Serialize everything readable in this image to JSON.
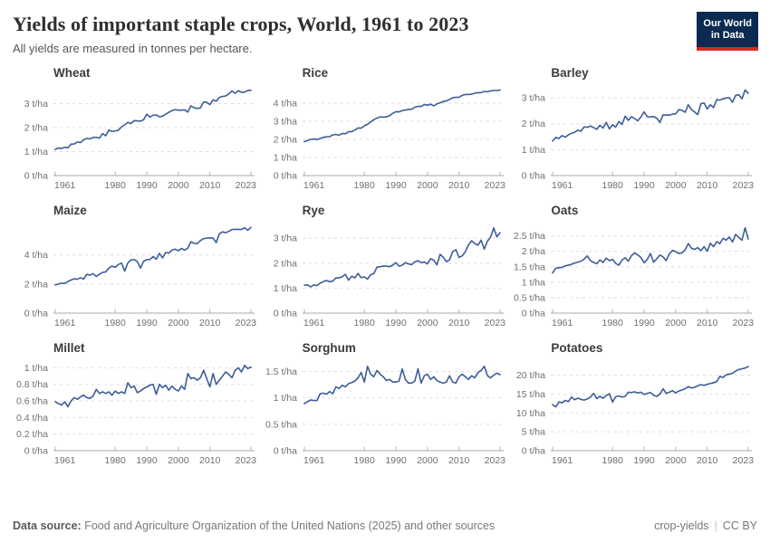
{
  "header": {
    "title": "Yields of important staple crops, World, 1961 to 2023",
    "subtitle": "All yields are measured in tonnes per hectare.",
    "logo": {
      "line1": "Our World",
      "line2": "in Data"
    }
  },
  "footer": {
    "source_label": "Data source:",
    "source_text": " Food and Agriculture Organization of the United Nations (2025) and other sources",
    "note": "crop-yields",
    "separator": "|",
    "license": "CC BY"
  },
  "colors": {
    "line": "#3d5d99",
    "grid": "#dedede",
    "axis": "#a8a8a8",
    "tick": "#b3b3b3",
    "logo_bg": "#0b2a51",
    "logo_red": "#d42b21"
  },
  "chart_data": [
    {
      "type": "line",
      "title": "Wheat",
      "unit": "t/ha",
      "x_start": 1961,
      "x_end": 2023,
      "x_ticks": [
        1961,
        1980,
        1990,
        2000,
        2010,
        2023
      ],
      "y_ticks": [
        0,
        1,
        2,
        3
      ],
      "y_tick_suffix": " t/ha",
      "ylim": [
        0,
        3.7
      ],
      "values": [
        1.09,
        1.15,
        1.13,
        1.18,
        1.16,
        1.31,
        1.32,
        1.4,
        1.38,
        1.49,
        1.55,
        1.53,
        1.59,
        1.6,
        1.56,
        1.75,
        1.66,
        1.9,
        1.84,
        1.86,
        1.89,
        2.03,
        2.12,
        2.22,
        2.17,
        2.29,
        2.28,
        2.27,
        2.33,
        2.56,
        2.44,
        2.52,
        2.53,
        2.45,
        2.48,
        2.56,
        2.64,
        2.71,
        2.75,
        2.73,
        2.73,
        2.74,
        2.65,
        2.91,
        2.83,
        2.8,
        2.82,
        3.07,
        3.06,
        2.96,
        3.16,
        3.1,
        3.26,
        3.3,
        3.32,
        3.41,
        3.53,
        3.43,
        3.54,
        3.47,
        3.48,
        3.55,
        3.56
      ]
    },
    {
      "type": "line",
      "title": "Rice",
      "unit": "t/ha",
      "x_start": 1961,
      "x_end": 2023,
      "x_ticks": [
        1961,
        1980,
        1990,
        2000,
        2010,
        2023
      ],
      "y_ticks": [
        0,
        1,
        2,
        3,
        4
      ],
      "y_tick_suffix": " t/ha",
      "ylim": [
        0,
        4.9
      ],
      "values": [
        1.87,
        1.94,
        2.0,
        2.02,
        1.99,
        2.05,
        2.11,
        2.14,
        2.15,
        2.25,
        2.27,
        2.23,
        2.33,
        2.31,
        2.42,
        2.43,
        2.51,
        2.63,
        2.62,
        2.75,
        2.83,
        2.96,
        3.09,
        3.18,
        3.24,
        3.23,
        3.24,
        3.31,
        3.44,
        3.53,
        3.52,
        3.59,
        3.62,
        3.66,
        3.66,
        3.78,
        3.82,
        3.82,
        3.92,
        3.89,
        3.94,
        3.85,
        3.96,
        4.02,
        4.09,
        4.12,
        4.21,
        4.3,
        4.32,
        4.33,
        4.43,
        4.48,
        4.48,
        4.5,
        4.55,
        4.58,
        4.58,
        4.65,
        4.63,
        4.68,
        4.7,
        4.7,
        4.73
      ]
    },
    {
      "type": "line",
      "title": "Barley",
      "unit": "t/ha",
      "x_start": 1961,
      "x_end": 2023,
      "x_ticks": [
        1961,
        1980,
        1990,
        2000,
        2010,
        2023
      ],
      "y_ticks": [
        0,
        1,
        2,
        3
      ],
      "y_tick_suffix": " t/ha",
      "ylim": [
        0,
        3.42
      ],
      "values": [
        1.33,
        1.47,
        1.43,
        1.54,
        1.48,
        1.57,
        1.63,
        1.67,
        1.75,
        1.71,
        1.88,
        1.86,
        1.91,
        1.85,
        1.78,
        1.94,
        1.83,
        2.05,
        1.8,
        1.96,
        1.87,
        2.08,
        1.97,
        2.29,
        2.13,
        2.27,
        2.2,
        2.11,
        2.26,
        2.46,
        2.27,
        2.26,
        2.28,
        2.21,
        2.05,
        2.34,
        2.33,
        2.33,
        2.37,
        2.38,
        2.54,
        2.52,
        2.44,
        2.73,
        2.55,
        2.45,
        2.35,
        2.77,
        2.8,
        2.57,
        2.73,
        2.62,
        2.93,
        2.91,
        2.96,
        2.99,
        3.0,
        2.83,
        3.09,
        3.12,
        2.96,
        3.3,
        3.17
      ]
    },
    {
      "type": "line",
      "title": "Maize",
      "unit": "t/ha",
      "x_start": 1961,
      "x_end": 2023,
      "x_ticks": [
        1961,
        1980,
        1990,
        2000,
        2010,
        2023
      ],
      "y_ticks": [
        0,
        2,
        4
      ],
      "y_tick_suffix": " t/ha",
      "ylim": [
        0,
        6.1
      ],
      "values": [
        1.94,
        2.0,
        2.06,
        2.04,
        2.17,
        2.28,
        2.36,
        2.33,
        2.43,
        2.35,
        2.67,
        2.61,
        2.72,
        2.52,
        2.68,
        2.8,
        2.84,
        3.1,
        3.24,
        3.15,
        3.35,
        3.44,
        2.89,
        3.45,
        3.66,
        3.68,
        3.55,
        3.1,
        3.57,
        3.68,
        3.69,
        3.89,
        3.71,
        4.11,
        3.8,
        4.17,
        4.13,
        4.34,
        4.4,
        4.29,
        4.45,
        4.33,
        4.47,
        4.91,
        4.8,
        4.78,
        4.99,
        5.12,
        5.16,
        5.18,
        5.16,
        4.85,
        5.46,
        5.59,
        5.53,
        5.63,
        5.75,
        5.76,
        5.76,
        5.75,
        5.87,
        5.7,
        5.9
      ]
    },
    {
      "type": "line",
      "title": "Rye",
      "unit": "t/ha",
      "x_start": 1961,
      "x_end": 2023,
      "x_ticks": [
        1961,
        1980,
        1990,
        2000,
        2010,
        2023
      ],
      "y_ticks": [
        0,
        1,
        2,
        3
      ],
      "y_tick_suffix": " t/ha",
      "ylim": [
        0,
        3.55
      ],
      "values": [
        1.12,
        1.13,
        1.05,
        1.13,
        1.1,
        1.2,
        1.26,
        1.31,
        1.26,
        1.28,
        1.41,
        1.41,
        1.46,
        1.55,
        1.32,
        1.48,
        1.41,
        1.59,
        1.42,
        1.45,
        1.36,
        1.54,
        1.58,
        1.84,
        1.86,
        1.88,
        1.88,
        1.86,
        1.92,
        2.02,
        1.88,
        1.92,
        2.02,
        1.97,
        1.94,
        2.05,
        2.1,
        2.02,
        2.05,
        1.97,
        2.18,
        2.12,
        1.93,
        2.35,
        2.24,
        2.06,
        2.13,
        2.46,
        2.54,
        2.23,
        2.29,
        2.46,
        2.73,
        2.9,
        2.78,
        2.72,
        2.92,
        2.56,
        2.88,
        3.04,
        3.41,
        3.05,
        3.22
      ]
    },
    {
      "type": "line",
      "title": "Oats",
      "unit": "t/ha",
      "x_start": 1961,
      "x_end": 2023,
      "x_ticks": [
        1961,
        1980,
        1990,
        2000,
        2010,
        2023
      ],
      "y_ticks": [
        0,
        0.5,
        1,
        1.5,
        2,
        2.5
      ],
      "y_tick_suffix": " t/ha",
      "ylim": [
        0,
        2.87
      ],
      "values": [
        1.3,
        1.45,
        1.47,
        1.48,
        1.53,
        1.55,
        1.58,
        1.62,
        1.65,
        1.68,
        1.75,
        1.85,
        1.7,
        1.64,
        1.6,
        1.72,
        1.64,
        1.78,
        1.7,
        1.74,
        1.61,
        1.55,
        1.72,
        1.79,
        1.68,
        1.86,
        1.95,
        1.88,
        1.8,
        1.63,
        1.74,
        1.93,
        1.65,
        1.76,
        1.88,
        1.82,
        1.7,
        1.92,
        2.03,
        1.99,
        1.93,
        1.95,
        2.05,
        2.25,
        2.1,
        2.06,
        2.12,
        2.02,
        2.15,
        2.0,
        2.26,
        2.15,
        2.31,
        2.25,
        2.42,
        2.36,
        2.46,
        2.3,
        2.55,
        2.45,
        2.36,
        2.76,
        2.4
      ]
    },
    {
      "type": "line",
      "title": "Millet",
      "unit": "t/ha",
      "x_start": 1961,
      "x_end": 2023,
      "x_ticks": [
        1961,
        1980,
        1990,
        2000,
        2010,
        2023
      ],
      "y_ticks": [
        0,
        0.2,
        0.4,
        0.6,
        0.8,
        1
      ],
      "y_tick_suffix": " t/ha",
      "ylim": [
        0,
        1.07
      ],
      "values": [
        0.59,
        0.57,
        0.55,
        0.59,
        0.53,
        0.6,
        0.64,
        0.62,
        0.65,
        0.67,
        0.64,
        0.63,
        0.66,
        0.74,
        0.69,
        0.71,
        0.69,
        0.71,
        0.67,
        0.72,
        0.69,
        0.71,
        0.69,
        0.82,
        0.76,
        0.78,
        0.7,
        0.72,
        0.75,
        0.77,
        0.79,
        0.8,
        0.68,
        0.8,
        0.76,
        0.79,
        0.73,
        0.78,
        0.74,
        0.72,
        0.78,
        0.74,
        0.93,
        0.87,
        0.88,
        0.85,
        0.88,
        0.97,
        0.87,
        0.77,
        0.93,
        0.8,
        0.85,
        0.9,
        0.95,
        0.92,
        0.88,
        0.97,
        1.0,
        0.95,
        1.03,
        0.99,
        1.01
      ]
    },
    {
      "type": "line",
      "title": "Sorghum",
      "unit": "t/ha",
      "x_start": 1961,
      "x_end": 2023,
      "x_ticks": [
        1961,
        1980,
        1990,
        2000,
        2010,
        2023
      ],
      "y_ticks": [
        0,
        0.5,
        1,
        1.5
      ],
      "y_tick_suffix": " t/ha",
      "ylim": [
        0,
        1.68
      ],
      "values": [
        0.89,
        0.93,
        0.96,
        0.95,
        0.95,
        1.08,
        1.09,
        1.07,
        1.12,
        1.08,
        1.21,
        1.18,
        1.24,
        1.21,
        1.27,
        1.29,
        1.32,
        1.38,
        1.48,
        1.3,
        1.6,
        1.45,
        1.4,
        1.52,
        1.45,
        1.4,
        1.33,
        1.35,
        1.3,
        1.3,
        1.32,
        1.55,
        1.35,
        1.28,
        1.28,
        1.32,
        1.55,
        1.28,
        1.42,
        1.45,
        1.35,
        1.4,
        1.33,
        1.3,
        1.28,
        1.3,
        1.42,
        1.3,
        1.28,
        1.4,
        1.45,
        1.4,
        1.35,
        1.42,
        1.38,
        1.48,
        1.52,
        1.6,
        1.42,
        1.38,
        1.43,
        1.47,
        1.44
      ]
    },
    {
      "type": "line",
      "title": "Potatoes",
      "unit": "t/ha",
      "x_start": 1961,
      "x_end": 2023,
      "x_ticks": [
        1961,
        1980,
        1990,
        2000,
        2010,
        2023
      ],
      "y_ticks": [
        0,
        5,
        10,
        15,
        20
      ],
      "y_tick_suffix": " t/ha",
      "ylim": [
        0,
        23.5
      ],
      "values": [
        12.2,
        11.6,
        12.9,
        12.7,
        13.3,
        13.0,
        14.2,
        13.5,
        13.9,
        13.6,
        13.4,
        13.7,
        14.2,
        15.2,
        13.8,
        14.4,
        13.9,
        14.6,
        15.1,
        12.9,
        14.3,
        14.5,
        14.2,
        14.4,
        15.5,
        15.4,
        15.6,
        15.3,
        15.5,
        14.9,
        15.2,
        15.4,
        14.7,
        14.4,
        15.0,
        16.4,
        15.2,
        15.5,
        15.9,
        15.3,
        15.8,
        16.1,
        16.4,
        17.0,
        16.6,
        16.8,
        17.2,
        17.5,
        17.3,
        17.6,
        17.8,
        18.0,
        18.3,
        19.7,
        19.4,
        20.1,
        20.3,
        20.5,
        21.1,
        21.5,
        21.7,
        21.9,
        22.3
      ]
    }
  ]
}
